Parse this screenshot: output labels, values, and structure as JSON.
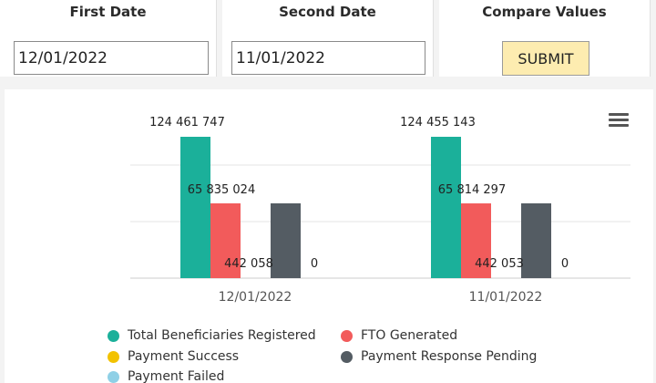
{
  "form": {
    "first_date_label": "First Date",
    "first_date_value": "12/01/2022",
    "second_date_label": "Second Date",
    "second_date_value": "11/01/2022",
    "compare_label": "Compare Values",
    "submit_label": "SUBMIT"
  },
  "chart": {
    "menu_icon": "hamburger-menu-icon"
  },
  "chart_data": {
    "type": "bar",
    "categories": [
      "12/01/2022",
      "11/01/2022"
    ],
    "series": [
      {
        "name": "Total Beneficiaries Registered",
        "color": "#1bb09a",
        "values": [
          124461747,
          124455143
        ],
        "labels": [
          "124 461 747",
          "124 455 143"
        ]
      },
      {
        "name": "FTO Generated",
        "color": "#f25b5b",
        "values": [
          65835024,
          65814297
        ],
        "labels": [
          "65 835 024",
          "65 814 297"
        ]
      },
      {
        "name": "Payment Success",
        "color": "#f2c200",
        "values": [
          0,
          0
        ],
        "labels": [
          "",
          ""
        ]
      },
      {
        "name": "Payment Response Pending",
        "color": "#545c63",
        "values": [
          442058,
          442053
        ],
        "labels": [
          "442 058",
          "442 053"
        ]
      },
      {
        "name": "Payment Failed",
        "color": "#8fd0e6",
        "values": [
          0,
          0
        ],
        "labels": [
          "0",
          "0"
        ]
      }
    ],
    "grid": true,
    "legend_placement": "bottom"
  }
}
